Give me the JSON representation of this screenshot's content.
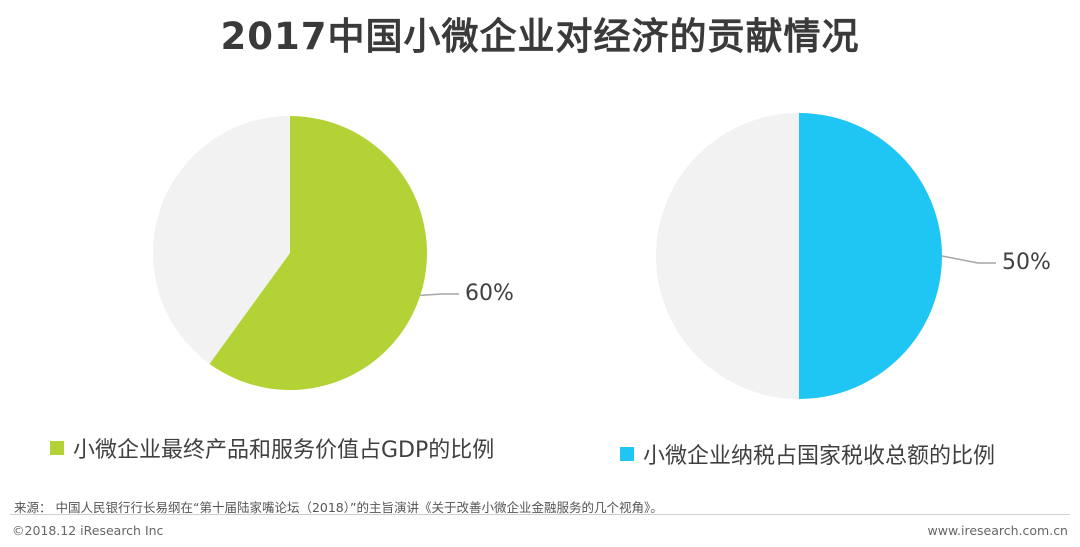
{
  "header": {
    "title": "2017中国小微企业对经济的贡献情况"
  },
  "chart_data": [
    {
      "type": "pie",
      "title": "",
      "slices": [
        {
          "label": "小微企业最终产品和服务价值占GDP的比例",
          "value": 60,
          "color": "#b2d235"
        },
        {
          "label": "",
          "value": 40,
          "color": "#f2f2f2"
        }
      ],
      "data_label": "60%",
      "legend": {
        "label": "小微企业最终产品和服务价值占GDP的比例",
        "color": "#b2d235",
        "placement": "bottom"
      }
    },
    {
      "type": "pie",
      "title": "",
      "slices": [
        {
          "label": "小微企业纳税占国家税收总额的比例",
          "value": 50,
          "color": "#1fc6f3"
        },
        {
          "label": "",
          "value": 50,
          "color": "#f2f2f2"
        }
      ],
      "data_label": "50%",
      "legend": {
        "label": "小微企业纳税占国家税收总额的比例",
        "color": "#1fc6f3",
        "placement": "bottom"
      }
    }
  ],
  "source": {
    "text": "来源： 中国人民银行行长易纲在“第十届陆家嘴论坛（2018）”的主旨演讲《关于改善小微企业金融服务的几个视角》。"
  },
  "footer": {
    "copyright": "©2018.12 iResearch Inc",
    "website": "www.iresearch.com.cn"
  },
  "colors": {
    "accent_green": "#b2d235",
    "accent_blue": "#1fc6f3",
    "remainder": "#f2f2f2",
    "leader_line": "#a6a6a6"
  }
}
